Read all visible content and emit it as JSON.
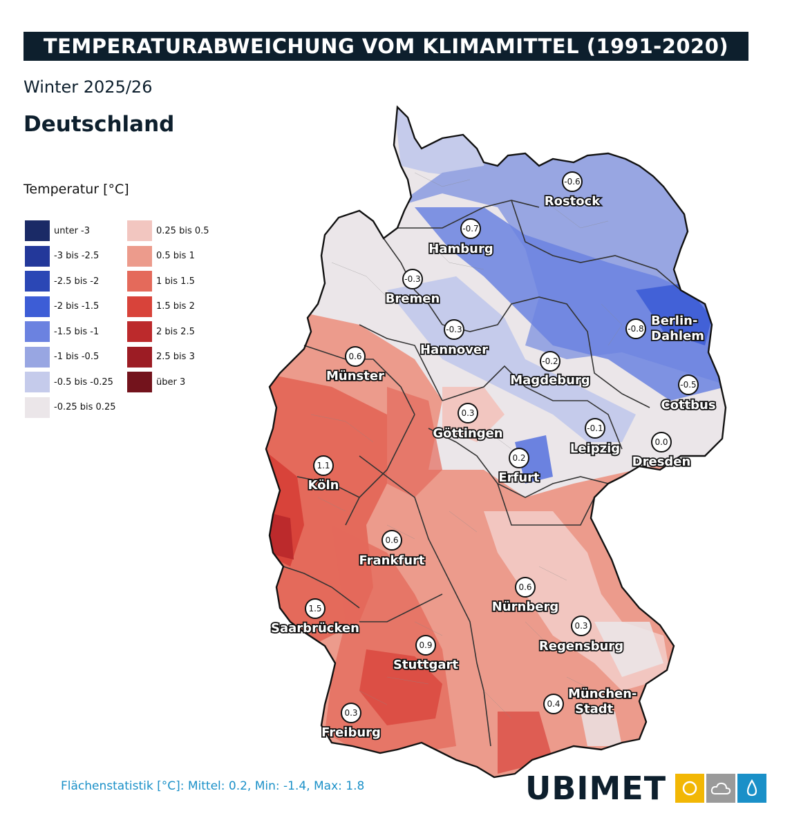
{
  "title": "TEMPERATURABWEICHUNG VOM KLIMAMITTEL (1991-2020)",
  "subtitle": "Winter 2025/26",
  "region": "Deutschland",
  "legend": {
    "title": "Temperatur [°C]",
    "items": [
      {
        "label": "unter -3",
        "color": "#1a2a66"
      },
      {
        "label": "-3 bis -2.5",
        "color": "#23389a"
      },
      {
        "label": "-2.5 bis -2",
        "color": "#2b47b5"
      },
      {
        "label": "-2 bis -1.5",
        "color": "#3d5dd6"
      },
      {
        "label": "-1.5 bis -1",
        "color": "#6b82e0"
      },
      {
        "label": "-1 bis -0.5",
        "color": "#98a6e2"
      },
      {
        "label": "-0.5 bis -0.25",
        "color": "#c5cbeb"
      },
      {
        "label": "-0.25 bis 0.25",
        "color": "#ebe6e9"
      },
      {
        "label": "0.25 bis 0.5",
        "color": "#f2c6c0"
      },
      {
        "label": "0.5 bis 1",
        "color": "#ec9b8c"
      },
      {
        "label": "1 bis 1.5",
        "color": "#e46a5b"
      },
      {
        "label": "1.5 bis 2",
        "color": "#d8433a"
      },
      {
        "label": "2 bis 2.5",
        "color": "#bc2a2c"
      },
      {
        "label": "2.5 bis 3",
        "color": "#9c1c24"
      },
      {
        "label": "über 3",
        "color": "#73131c"
      }
    ]
  },
  "cities": [
    {
      "name": "Rostock",
      "value": "-0.6"
    },
    {
      "name": "Hamburg",
      "value": "-0.7"
    },
    {
      "name": "Bremen",
      "value": "-0.3"
    },
    {
      "name": "Hannover",
      "value": "-0.3"
    },
    {
      "name": "Berlin-",
      "name2": "Dahlem",
      "value": "-0.8"
    },
    {
      "name": "Münster",
      "value": "0.6"
    },
    {
      "name": "Magdeburg",
      "value": "-0.2"
    },
    {
      "name": "Cottbus",
      "value": "-0.5"
    },
    {
      "name": "Göttingen",
      "value": "0.3"
    },
    {
      "name": "Leipzig",
      "value": "-0.1"
    },
    {
      "name": "Dresden",
      "value": "0.0"
    },
    {
      "name": "Erfurt",
      "value": "0.2"
    },
    {
      "name": "Köln",
      "value": "1.1"
    },
    {
      "name": "Frankfurt",
      "value": "0.6"
    },
    {
      "name": "Nürnberg",
      "value": "0.6"
    },
    {
      "name": "Saarbrücken",
      "value": "1.5"
    },
    {
      "name": "Regensburg",
      "value": "0.3"
    },
    {
      "name": "Stuttgart",
      "value": "0.9"
    },
    {
      "name": "München-",
      "name2": "Stadt",
      "value": "0.4"
    },
    {
      "name": "Freiburg",
      "value": "0.3"
    }
  ],
  "stats": "Flächenstatistik [°C]: Mittel: 0.2, Min: -1.4, Max: 1.8",
  "logo": {
    "text": "UBIMET",
    "icons": [
      "sun-icon",
      "cloud-icon",
      "drop-icon"
    ],
    "colors": [
      "#f2b705",
      "#9a9a9a",
      "#1a90c8"
    ]
  }
}
